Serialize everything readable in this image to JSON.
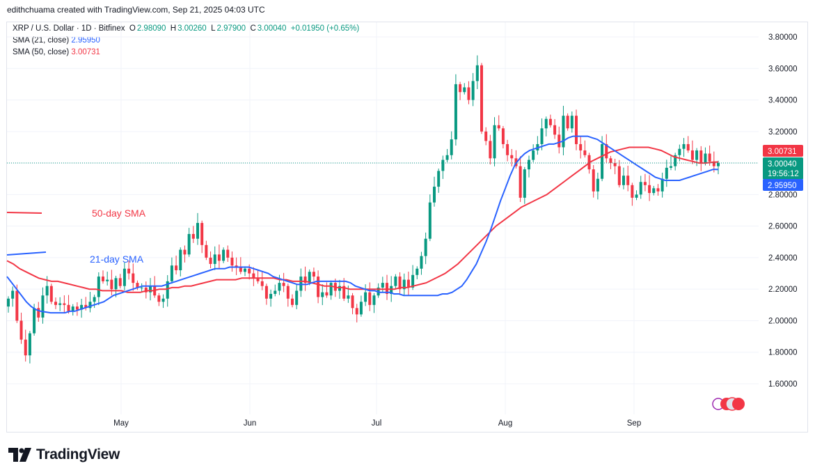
{
  "header": {
    "credit": "edithchuama created with TradingView.com, Sep 21, 2025 04:03 UTC"
  },
  "legend": {
    "symbol": "XRP / U.S. Dollar · 1D · Bitfinex",
    "open_label": "O",
    "open": "2.98090",
    "high_label": "H",
    "high": "3.00260",
    "low_label": "L",
    "low": "2.97900",
    "close_label": "C",
    "close": "3.00040",
    "change": "+0.01950 (+0.65%)",
    "sma21_label": "SMA (21, close)",
    "sma21_value": "2.95950",
    "sma50_label": "SMA (50, close)",
    "sma50_value": "3.00731"
  },
  "chart_data": {
    "type": "candlestick",
    "title": "XRP / U.S. Dollar · 1D · Bitfinex",
    "ylim": [
      1.5,
      3.9
    ],
    "y_ticks": [
      "3.80000",
      "3.60000",
      "3.40000",
      "3.20000",
      "2.80000",
      "2.60000",
      "2.40000",
      "2.20000",
      "2.00000",
      "1.80000",
      "1.60000"
    ],
    "x_ticks": [
      "May",
      "Jun",
      "Jul",
      "Aug",
      "Sep"
    ],
    "price_labels": {
      "sma50": "3.00731",
      "last": "3.00040",
      "countdown": "19:56:12",
      "sma21": "2.95950"
    },
    "annotations": [
      "50-day SMA",
      "21-day SMA"
    ],
    "closes": [
      2.14,
      2.19,
      2.0,
      1.88,
      1.78,
      1.92,
      2.08,
      2.02,
      2.16,
      2.22,
      2.12,
      2.1,
      2.11,
      2.1,
      2.06,
      2.09,
      2.07,
      2.1,
      2.08,
      2.12,
      2.15,
      2.28,
      2.25,
      2.26,
      2.2,
      2.27,
      2.22,
      2.33,
      2.3,
      2.24,
      2.21,
      2.21,
      2.18,
      2.22,
      2.16,
      2.12,
      2.14,
      2.25,
      2.35,
      2.32,
      2.45,
      2.42,
      2.55,
      2.52,
      2.62,
      2.48,
      2.4,
      2.36,
      2.42,
      2.38,
      2.45,
      2.4,
      2.35,
      2.34,
      2.31,
      2.33,
      2.3,
      2.27,
      2.25,
      2.22,
      2.14,
      2.17,
      2.19,
      2.24,
      2.22,
      2.14,
      2.1,
      2.19,
      2.28,
      2.24,
      2.31,
      2.28,
      2.15,
      2.18,
      2.16,
      2.24,
      2.19,
      2.22,
      2.14,
      2.16,
      2.08,
      2.04,
      2.12,
      2.18,
      2.1,
      2.16,
      2.21,
      2.24,
      2.17,
      2.22,
      2.28,
      2.2,
      2.26,
      2.21,
      2.29,
      2.33,
      2.41,
      2.52,
      2.75,
      2.85,
      2.95,
      3.02,
      3.05,
      3.15,
      3.5,
      3.45,
      3.48,
      3.4,
      3.52,
      3.62,
      3.2,
      3.14,
      3.03,
      3.24,
      3.22,
      3.12,
      3.05,
      3.03,
      2.98,
      2.78,
      2.96,
      3.02,
      3.08,
      3.12,
      3.22,
      3.28,
      3.24,
      3.18,
      3.1,
      3.3,
      3.22,
      3.3,
      3.12,
      3.08,
      3.05,
      2.96,
      2.82,
      2.9,
      3.12,
      3.03,
      3.0,
      2.98,
      2.86,
      2.92,
      2.86,
      2.78,
      2.8,
      2.88,
      2.86,
      2.81,
      2.84,
      2.82,
      2.9,
      2.97,
      2.98,
      3.05,
      3.09,
      3.12,
      3.08,
      3.02,
      3.08,
      3.0,
      3.06,
      3.01,
      2.98,
      3.0
    ],
    "sma21": [
      2.28,
      2.24,
      2.2,
      2.16,
      2.12,
      2.09,
      2.07,
      2.06,
      2.055,
      2.05,
      2.05,
      2.05,
      2.05,
      2.06,
      2.06,
      2.07,
      2.08,
      2.09,
      2.1,
      2.11,
      2.12,
      2.14,
      2.16,
      2.17,
      2.18,
      2.19,
      2.2,
      2.21,
      2.22,
      2.22,
      2.22,
      2.22,
      2.22,
      2.23,
      2.24,
      2.25,
      2.26,
      2.27,
      2.28,
      2.29,
      2.3,
      2.31,
      2.32,
      2.33,
      2.33,
      2.33,
      2.34,
      2.34,
      2.34,
      2.34,
      2.34,
      2.33,
      2.32,
      2.31,
      2.3,
      2.28,
      2.27,
      2.26,
      2.25,
      2.24,
      2.23,
      2.23,
      2.23,
      2.24,
      2.25,
      2.25,
      2.25,
      2.25,
      2.25,
      2.25,
      2.25,
      2.24,
      2.22,
      2.21,
      2.2,
      2.19,
      2.19,
      2.18,
      2.18,
      2.18,
      2.17,
      2.17,
      2.16,
      2.16,
      2.16,
      2.16,
      2.16,
      2.16,
      2.16,
      2.16,
      2.17,
      2.17,
      2.18,
      2.2,
      2.22,
      2.26,
      2.31,
      2.36,
      2.43,
      2.5,
      2.58,
      2.67,
      2.76,
      2.84,
      2.92,
      2.99,
      3.03,
      3.06,
      3.08,
      3.09,
      3.1,
      3.11,
      3.12,
      3.12,
      3.13,
      3.14,
      3.16,
      3.17,
      3.17,
      3.17,
      3.17,
      3.16,
      3.15,
      3.13,
      3.11,
      3.09,
      3.07,
      3.05,
      3.03,
      3.01,
      2.99,
      2.97,
      2.95,
      2.93,
      2.91,
      2.9,
      2.89,
      2.89,
      2.89,
      2.89,
      2.9,
      2.91,
      2.92,
      2.93,
      2.94,
      2.95,
      2.96,
      2.959
    ],
    "sma50": [
      2.38,
      2.36,
      2.33,
      2.31,
      2.29,
      2.27,
      2.26,
      2.25,
      2.25,
      2.24,
      2.23,
      2.22,
      2.21,
      2.2,
      2.2,
      2.19,
      2.19,
      2.19,
      2.19,
      2.18,
      2.18,
      2.18,
      2.19,
      2.19,
      2.2,
      2.2,
      2.21,
      2.21,
      2.22,
      2.22,
      2.23,
      2.24,
      2.25,
      2.26,
      2.26,
      2.26,
      2.26,
      2.27,
      2.27,
      2.27,
      2.27,
      2.27,
      2.27,
      2.26,
      2.26,
      2.25,
      2.25,
      2.25,
      2.24,
      2.23,
      2.22,
      2.22,
      2.21,
      2.21,
      2.2,
      2.2,
      2.2,
      2.2,
      2.2,
      2.2,
      2.2,
      2.2,
      2.21,
      2.21,
      2.22,
      2.23,
      2.24,
      2.26,
      2.28,
      2.3,
      2.33,
      2.36,
      2.4,
      2.44,
      2.48,
      2.52,
      2.56,
      2.6,
      2.63,
      2.66,
      2.69,
      2.72,
      2.74,
      2.76,
      2.78,
      2.8,
      2.83,
      2.86,
      2.89,
      2.92,
      2.95,
      2.98,
      3.01,
      3.03,
      3.05,
      3.07,
      3.08,
      3.09,
      3.1,
      3.1,
      3.1,
      3.1,
      3.09,
      3.08,
      3.06,
      3.04,
      3.03,
      3.02,
      3.01,
      3.0,
      3.0,
      3.005,
      3.007
    ]
  }
}
